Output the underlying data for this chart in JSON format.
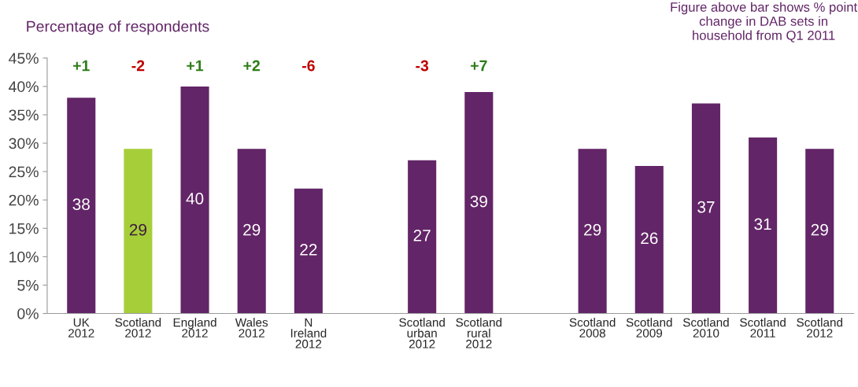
{
  "chart_data": {
    "type": "bar",
    "ylabel": "Percentage of respondents",
    "categories": [
      "UK 2012",
      "Scotland 2012",
      "England 2012",
      "Wales 2012",
      "N Ireland 2012",
      null,
      "Scotland urban 2012",
      "Scotland rural 2012",
      null,
      "Scotland 2008",
      "Scotland 2009",
      "Scotland 2010",
      "Scotland 2011",
      "Scotland 2012"
    ],
    "values": [
      38,
      29,
      40,
      29,
      22,
      null,
      27,
      39,
      null,
      29,
      26,
      37,
      31,
      29
    ],
    "colors": [
      "#622567",
      "#a6ce39",
      "#622567",
      "#622567",
      "#622567",
      null,
      "#622567",
      "#622567",
      null,
      "#622567",
      "#622567",
      "#622567",
      "#622567",
      "#622567"
    ],
    "data_labels": true,
    "ylim": [
      0,
      45
    ],
    "yticks": [
      {
        "value": 0,
        "label": "0%"
      },
      {
        "value": 5,
        "label": "5%"
      },
      {
        "value": 10,
        "label": "10%"
      },
      {
        "value": 15,
        "label": "15%"
      },
      {
        "value": 20,
        "label": "20%"
      },
      {
        "value": 25,
        "label": "25%"
      },
      {
        "value": 30,
        "label": "30%"
      },
      {
        "value": 35,
        "label": "35%"
      },
      {
        "value": 40,
        "label": "40%"
      },
      {
        "value": 45,
        "label": "45%"
      }
    ],
    "grid": false,
    "annotations": [
      "Figure above bar shows % point change in DAB sets in household from Q1 2011",
      "+1",
      "-2",
      "+1",
      "+2",
      "-6",
      "-3",
      "+7"
    ]
  }
}
